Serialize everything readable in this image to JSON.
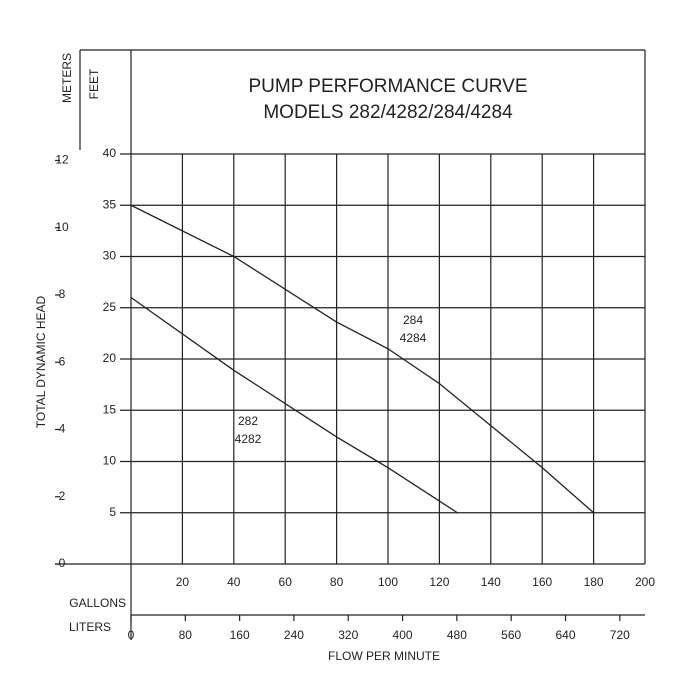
{
  "chart_data": {
    "type": "line",
    "title": "PUMP PERFORMANCE CURVE",
    "subtitle": "MODELS 282/4282/284/4284",
    "y_label": "TOTAL DYNAMIC HEAD",
    "y_unit": "FEET",
    "y2_unit": "METERS",
    "x_unit": "GALLONS",
    "x2_unit": "LITERS",
    "x_label": "FLOW PER MINUTE",
    "xlim": [
      0,
      200
    ],
    "xticks": [
      20,
      40,
      60,
      80,
      100,
      120,
      140,
      160,
      180,
      200
    ],
    "x2lim": [
      0,
      757.08
    ],
    "x2ticks": [
      0,
      80,
      160,
      240,
      320,
      400,
      480,
      560,
      640,
      720
    ],
    "ylim": [
      0,
      40
    ],
    "yticks": [
      5,
      10,
      15,
      20,
      25,
      30,
      35,
      40
    ],
    "y2lim": [
      0,
      12.192
    ],
    "y2ticks": [
      0,
      2,
      4,
      6,
      8,
      10,
      12
    ],
    "grid": true,
    "series": [
      {
        "label_lines": [
          "284",
          "4284"
        ],
        "color": "#222222",
        "x": [
          0,
          40,
          80,
          100,
          120,
          140,
          160,
          180
        ],
        "values": [
          35,
          30,
          23.6,
          21,
          17.6,
          13.5,
          9.4,
          5
        ]
      },
      {
        "label_lines": [
          "282",
          "4282"
        ],
        "color": "#222222",
        "x": [
          0,
          40,
          80,
          100,
          127
        ],
        "values": [
          26,
          18.9,
          12.4,
          9.4,
          5
        ]
      }
    ]
  }
}
